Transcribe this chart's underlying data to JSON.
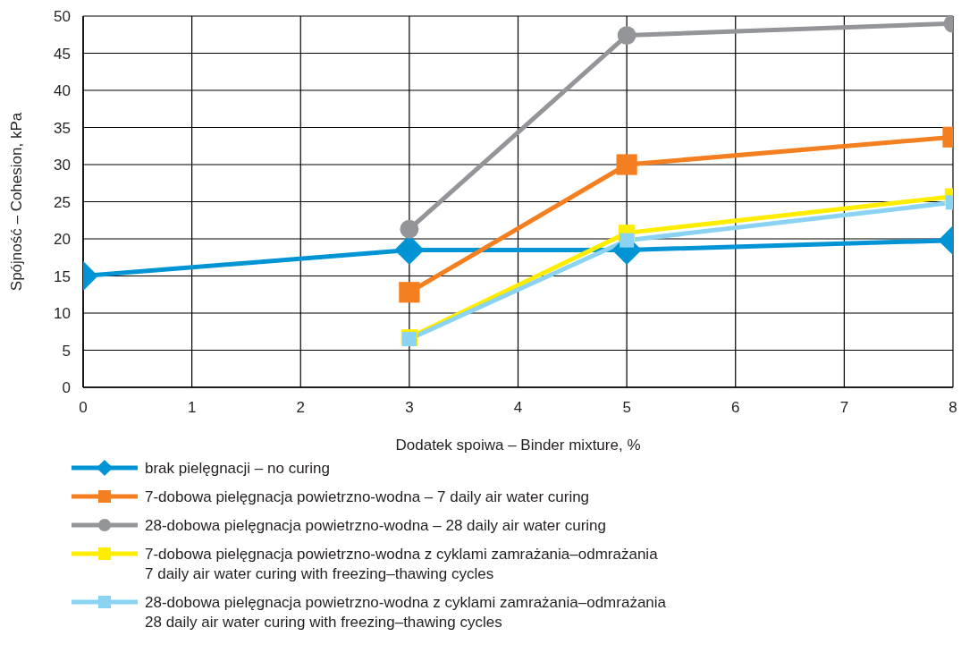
{
  "chart_data": {
    "type": "line",
    "xlabel": "Dodatek spoiwa – Binder mixture, %",
    "ylabel": "Spójność – Cohesion, kPa",
    "xlim": [
      0,
      8
    ],
    "xticks": [
      0,
      1,
      2,
      3,
      4,
      5,
      6,
      7,
      8
    ],
    "ylim": [
      0,
      50
    ],
    "yticks": [
      0,
      5,
      10,
      15,
      20,
      25,
      30,
      35,
      40,
      45,
      50
    ],
    "grid": true,
    "legend": "bottom",
    "line_style": "solid",
    "series": [
      {
        "name": "brak pielęgnacji – no curing",
        "color": "#0094d4",
        "marker": "diamond",
        "x": [
          0,
          3,
          5,
          8
        ],
        "values": [
          15,
          18.5,
          18.5,
          19.8
        ]
      },
      {
        "name": "7-dobowa pielęgnacja powietrzno-wodna – 7 daily air water curing",
        "color": "#f47f20",
        "marker": "square",
        "x": [
          3,
          5,
          8
        ],
        "values": [
          12.8,
          30,
          33.7
        ]
      },
      {
        "name": "28-dobowa pielęgnacja powietrzno-wodna – 28 daily air water curing",
        "color": "#939598",
        "marker": "circle",
        "x": [
          3,
          5,
          8
        ],
        "values": [
          21.3,
          47.4,
          49
        ]
      },
      {
        "name": "7-dobowa pielęgnacja powietrzno-wodna z cyklami zamrażania–odmrażania\n7 daily air water curing with freezing–thawing cycles",
        "color": "#ffed00",
        "marker": "square",
        "x": [
          3,
          5,
          8
        ],
        "values": [
          6.7,
          20.8,
          25.7
        ]
      },
      {
        "name": "28-dobowa pielęgnacja powietrzno-wodna z cyklami zamrażania–odmrażania\n28 daily air water curing with freezing–thawing cycles",
        "color": "#8ad3f2",
        "marker": "square",
        "x": [
          3,
          5,
          8
        ],
        "values": [
          6.5,
          19.8,
          24.9
        ]
      }
    ]
  }
}
